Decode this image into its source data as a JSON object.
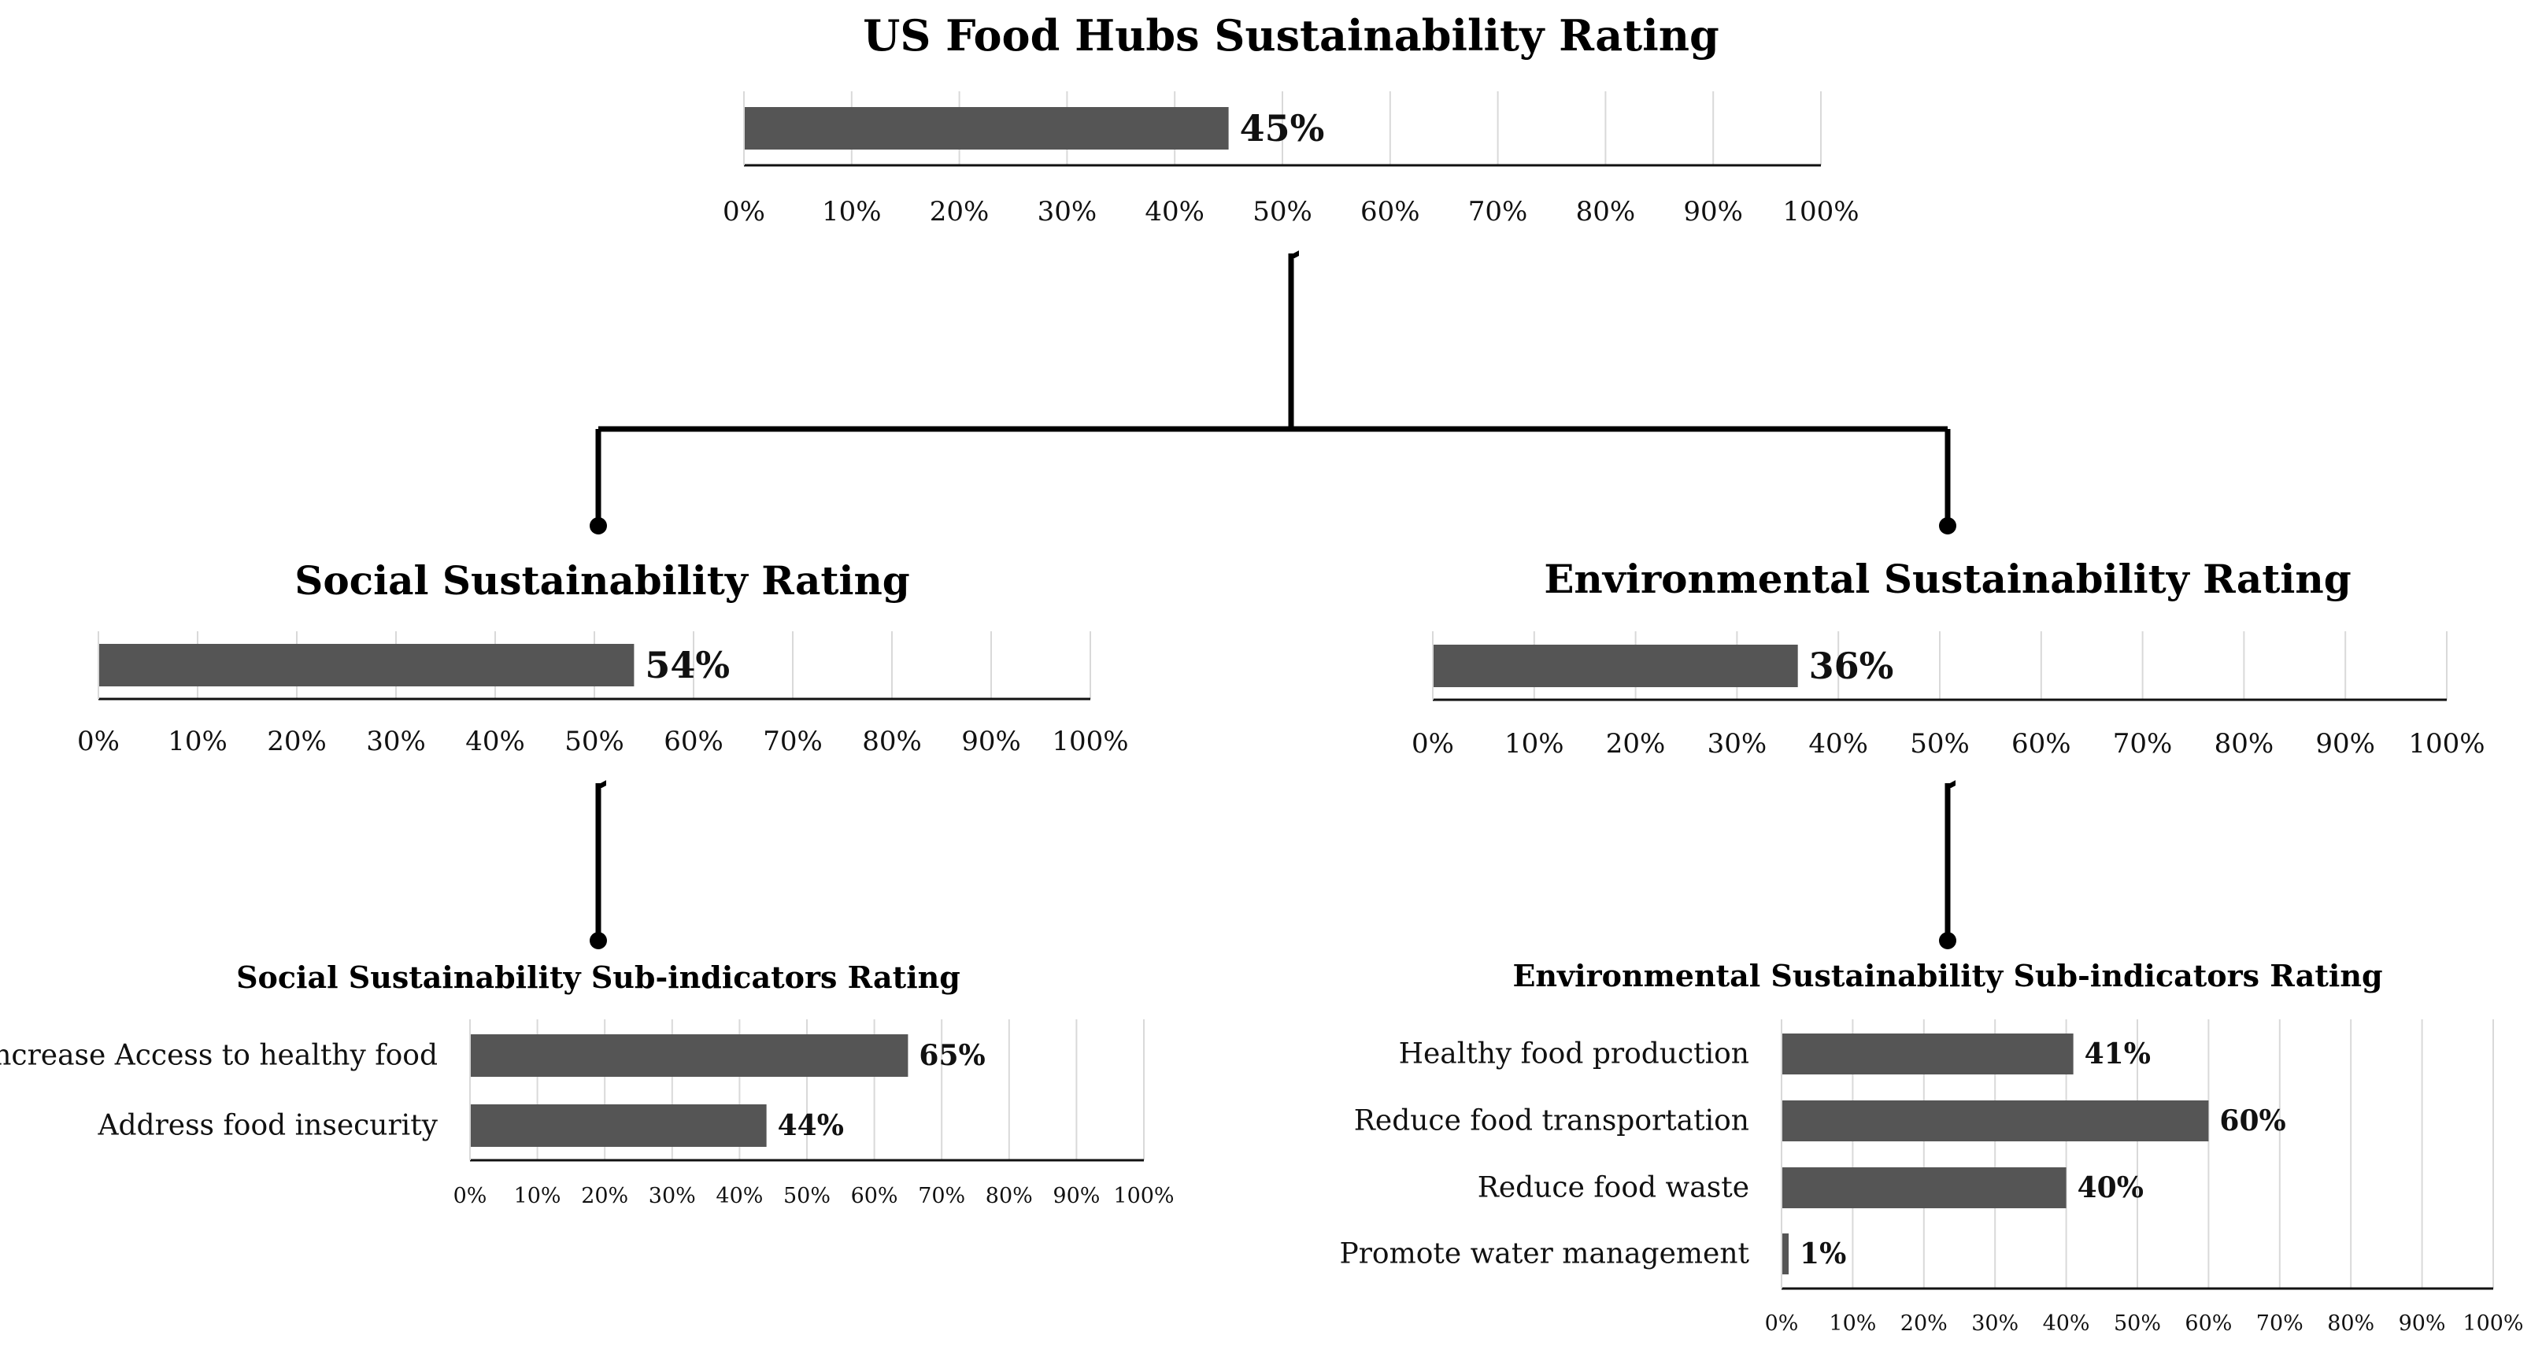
{
  "colors": {
    "bar": "#555555",
    "grid": "#d9d9d9",
    "axis": "#111111",
    "connector": "#000000"
  },
  "chart_data": [
    {
      "type": "bar",
      "orientation": "horizontal",
      "title": "US Food Hubs Sustainability Rating",
      "categories": [
        ""
      ],
      "values": [
        45
      ],
      "value_labels": [
        "45%"
      ],
      "xlim": [
        0,
        100
      ],
      "ticks": [
        "0%",
        "10%",
        "20%",
        "30%",
        "40%",
        "50%",
        "60%",
        "70%",
        "80%",
        "90%",
        "100%"
      ],
      "grid": true
    },
    {
      "type": "bar",
      "orientation": "horizontal",
      "title": "Social Sustainability Rating",
      "categories": [
        ""
      ],
      "values": [
        54
      ],
      "value_labels": [
        "54%"
      ],
      "xlim": [
        0,
        100
      ],
      "ticks": [
        "0%",
        "10%",
        "20%",
        "30%",
        "40%",
        "50%",
        "60%",
        "70%",
        "80%",
        "90%",
        "100%"
      ],
      "grid": true
    },
    {
      "type": "bar",
      "orientation": "horizontal",
      "title": "Environmental Sustainability Rating",
      "categories": [
        ""
      ],
      "values": [
        36
      ],
      "value_labels": [
        "36%"
      ],
      "xlim": [
        0,
        100
      ],
      "ticks": [
        "0%",
        "10%",
        "20%",
        "30%",
        "40%",
        "50%",
        "60%",
        "70%",
        "80%",
        "90%",
        "100%"
      ],
      "grid": true
    },
    {
      "type": "bar",
      "orientation": "horizontal",
      "title": "Social Sustainability Sub-indicators Rating",
      "categories": [
        "Increase Access to healthy food",
        "Address food insecurity"
      ],
      "values": [
        65,
        44
      ],
      "value_labels": [
        "65%",
        "44%"
      ],
      "xlim": [
        0,
        100
      ],
      "ticks": [
        "0%",
        "10%",
        "20%",
        "30%",
        "40%",
        "50%",
        "60%",
        "70%",
        "80%",
        "90%",
        "100%"
      ],
      "grid": true
    },
    {
      "type": "bar",
      "orientation": "horizontal",
      "title": "Environmental Sustainability Sub-indicators Rating",
      "categories": [
        "Healthy food production",
        "Reduce food transportation",
        "Reduce food waste",
        "Promote water management"
      ],
      "values": [
        41,
        60,
        40,
        1
      ],
      "value_labels": [
        "41%",
        "60%",
        "40%",
        "1%"
      ],
      "xlim": [
        0,
        100
      ],
      "ticks": [
        "0%",
        "10%",
        "20%",
        "30%",
        "40%",
        "50%",
        "60%",
        "70%",
        "80%",
        "90%",
        "100%"
      ],
      "grid": true
    }
  ]
}
